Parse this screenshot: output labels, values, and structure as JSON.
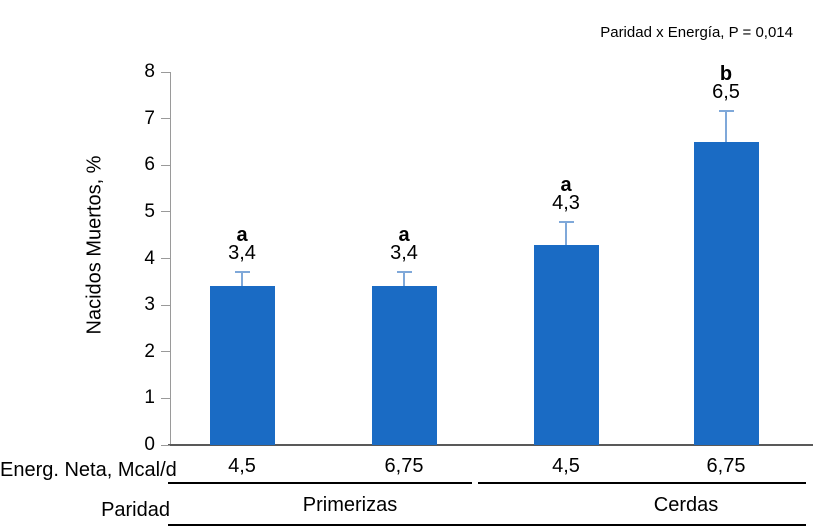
{
  "chart_data": {
    "type": "bar",
    "title": "",
    "annotation": "Paridad x Energía, P = 0,014",
    "ylabel": "Nacidos Muertos, %",
    "ylim": [
      0,
      8
    ],
    "yticks": [
      "0",
      "1",
      "2",
      "3",
      "4",
      "5",
      "6",
      "7",
      "8"
    ],
    "grid": false,
    "legend": false,
    "xlabel_rows": {
      "energy_label": "Energ. Neta, Mcal/d",
      "parity_label": "Paridad"
    },
    "groups": [
      "Primerizas",
      "Cerdas"
    ],
    "bars": [
      {
        "group": "Primerizas",
        "energy": "4,5",
        "value": 3.4,
        "value_label": "3,4",
        "sig_letter": "a",
        "error": 0.32
      },
      {
        "group": "Primerizas",
        "energy": "6,75",
        "value": 3.4,
        "value_label": "3,4",
        "sig_letter": "a",
        "error": 0.32
      },
      {
        "group": "Cerdas",
        "energy": "4,5",
        "value": 4.3,
        "value_label": "4,3",
        "sig_letter": "a",
        "error": 0.49
      },
      {
        "group": "Cerdas",
        "energy": "6,75",
        "value": 6.5,
        "value_label": "6,5",
        "sig_letter": "b",
        "error": 0.66
      }
    ],
    "colors": {
      "bar": "#1a6bc4",
      "error_bar": "#7fa8d9",
      "axis": "#9a9a9a",
      "baseline": "#595959",
      "rule": "#000000",
      "text": "#000000"
    }
  }
}
